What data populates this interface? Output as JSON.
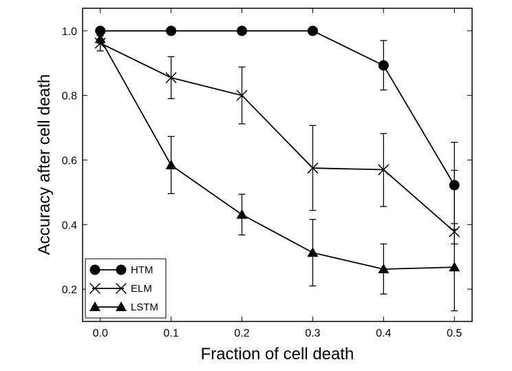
{
  "chart_data": {
    "type": "line",
    "xlabel": "Fraction of cell death",
    "ylabel": "Accuracy after cell death",
    "xlim": [
      -0.025,
      0.525
    ],
    "ylim": [
      0.1,
      1.07
    ],
    "x": [
      0.0,
      0.1,
      0.2,
      0.3,
      0.4,
      0.5
    ],
    "x_tick_labels": [
      "0.0",
      "0.1",
      "0.2",
      "0.3",
      "0.4",
      "0.5"
    ],
    "y_ticks": [
      0.2,
      0.4,
      0.6,
      0.8,
      1.0
    ],
    "y_tick_labels": [
      "0.2",
      "0.4",
      "0.6",
      "0.8",
      "1.0"
    ],
    "grid": false,
    "legend_position": "bottom-left",
    "series": [
      {
        "name": "HTM",
        "marker": "circle",
        "color": "#000000",
        "values": [
          1.0,
          1.0,
          1.0,
          1.0,
          0.893,
          0.522
        ],
        "err_low": [
          1.0,
          1.0,
          1.0,
          1.0,
          0.817,
          0.385
        ],
        "err_high": [
          1.0,
          1.0,
          1.0,
          1.0,
          0.97,
          0.655
        ]
      },
      {
        "name": "ELM",
        "marker": "x",
        "color": "#000000",
        "values": [
          0.962,
          0.855,
          0.8,
          0.575,
          0.57,
          0.378
        ],
        "err_low": [
          0.938,
          0.79,
          0.712,
          0.444,
          0.456,
          0.34
        ],
        "err_high": [
          0.985,
          0.92,
          0.888,
          0.707,
          0.682,
          0.403
        ]
      },
      {
        "name": "LSTM",
        "marker": "triangle",
        "color": "#000000",
        "values": [
          0.975,
          0.584,
          0.431,
          0.313,
          0.262,
          0.268
        ],
        "err_low": [
          0.962,
          0.496,
          0.368,
          0.21,
          0.185,
          0.133
        ],
        "err_high": [
          0.985,
          0.673,
          0.494,
          0.416,
          0.34,
          0.568
        ]
      }
    ]
  }
}
